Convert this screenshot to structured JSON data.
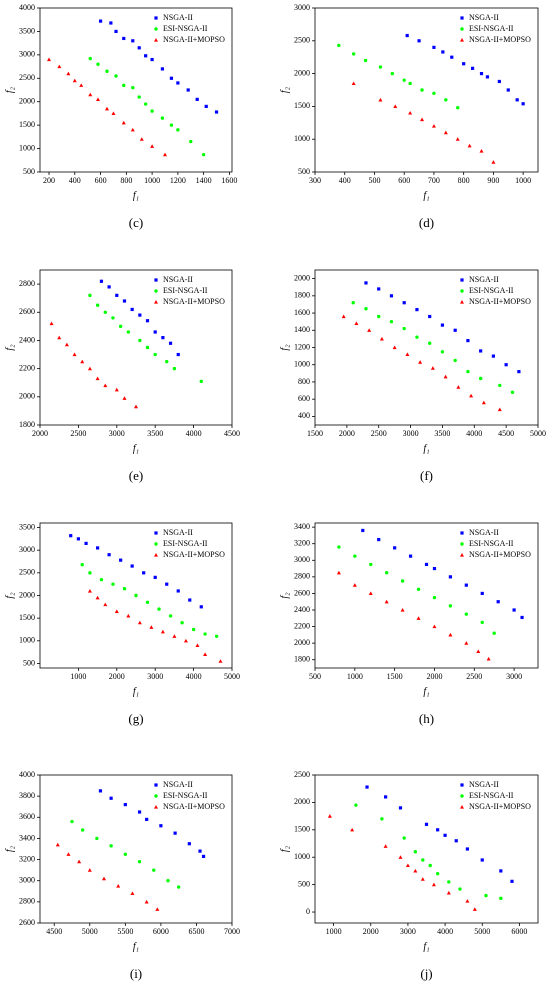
{
  "chart_data": [
    {
      "type": "scatter",
      "label": "(c)",
      "xlabel": "f₁",
      "ylabel": "f₂",
      "xlim": [
        130,
        1620
      ],
      "xticks": [
        200,
        400,
        600,
        800,
        1000,
        1200,
        1400,
        1600
      ],
      "ylim": [
        500,
        4000
      ],
      "yticks": [
        500,
        1000,
        1500,
        2000,
        2500,
        3000,
        3500,
        4000
      ],
      "series": [
        {
          "name": "NSGA-II",
          "color": "#0000ff",
          "marker": "square",
          "x": [
            600,
            680,
            720,
            780,
            850,
            900,
            950,
            1000,
            1080,
            1150,
            1200,
            1280,
            1350,
            1420,
            1500
          ],
          "values": [
            3720,
            3680,
            3500,
            3350,
            3300,
            3150,
            2980,
            2900,
            2700,
            2500,
            2400,
            2250,
            2050,
            1900,
            1780
          ]
        },
        {
          "name": "ESI-NSGA-II",
          "color": "#00ff00",
          "marker": "circle",
          "x": [
            520,
            580,
            650,
            720,
            780,
            850,
            900,
            950,
            1000,
            1080,
            1150,
            1200,
            1300,
            1400
          ],
          "values": [
            2920,
            2800,
            2650,
            2550,
            2350,
            2300,
            2100,
            1950,
            1800,
            1650,
            1500,
            1400,
            1150,
            870
          ]
        },
        {
          "name": "NSGA-II+MOPSO",
          "color": "#ff0000",
          "marker": "triangle",
          "x": [
            200,
            280,
            350,
            400,
            450,
            520,
            580,
            650,
            700,
            780,
            850,
            920,
            1000,
            1100
          ],
          "values": [
            2900,
            2750,
            2600,
            2450,
            2350,
            2150,
            2050,
            1850,
            1750,
            1550,
            1400,
            1200,
            1050,
            870
          ]
        }
      ]
    },
    {
      "type": "scatter",
      "label": "(d)",
      "xlabel": "f₁",
      "ylabel": "f₂",
      "xlim": [
        300,
        1050
      ],
      "xticks": [
        300,
        400,
        500,
        600,
        700,
        800,
        900,
        1000
      ],
      "ylim": [
        500,
        3000
      ],
      "yticks": [
        500,
        1000,
        1500,
        2000,
        2500,
        3000
      ],
      "series": [
        {
          "name": "NSGA-II",
          "color": "#0000ff",
          "marker": "square",
          "x": [
            610,
            650,
            700,
            730,
            760,
            800,
            830,
            860,
            880,
            920,
            950,
            980,
            1000
          ],
          "values": [
            2580,
            2500,
            2400,
            2330,
            2250,
            2150,
            2080,
            2000,
            1950,
            1880,
            1750,
            1600,
            1540
          ]
        },
        {
          "name": "ESI-NSGA-II",
          "color": "#00ff00",
          "marker": "circle",
          "x": [
            380,
            430,
            470,
            520,
            560,
            600,
            620,
            660,
            700,
            740,
            780
          ],
          "values": [
            2430,
            2300,
            2200,
            2100,
            2000,
            1900,
            1850,
            1750,
            1700,
            1600,
            1480
          ]
        },
        {
          "name": "NSGA-II+MOPSO",
          "color": "#ff0000",
          "marker": "triangle",
          "x": [
            430,
            520,
            570,
            620,
            660,
            700,
            740,
            780,
            820,
            860,
            900
          ],
          "values": [
            1850,
            1600,
            1500,
            1400,
            1300,
            1200,
            1100,
            1000,
            900,
            820,
            650
          ]
        }
      ]
    },
    {
      "type": "scatter",
      "label": "(e)",
      "xlabel": "f₁",
      "ylabel": "f₂",
      "xlim": [
        2000,
        4500
      ],
      "xticks": [
        2000,
        2500,
        3000,
        3500,
        4000,
        4500
      ],
      "ylim": [
        1800,
        2900
      ],
      "yticks": [
        1800,
        2000,
        2200,
        2400,
        2600,
        2800
      ],
      "series": [
        {
          "name": "NSGA-II",
          "color": "#0000ff",
          "marker": "square",
          "x": [
            2800,
            2900,
            3000,
            3100,
            3200,
            3300,
            3400,
            3500,
            3600,
            3700,
            3800
          ],
          "values": [
            2820,
            2780,
            2720,
            2680,
            2620,
            2580,
            2540,
            2460,
            2420,
            2380,
            2300
          ]
        },
        {
          "name": "ESI-NSGA-II",
          "color": "#00ff00",
          "marker": "circle",
          "x": [
            2650,
            2750,
            2850,
            2950,
            3050,
            3150,
            3300,
            3400,
            3500,
            3650,
            3750,
            4100
          ],
          "values": [
            2720,
            2650,
            2600,
            2560,
            2500,
            2460,
            2400,
            2350,
            2300,
            2250,
            2200,
            2110
          ]
        },
        {
          "name": "NSGA-II+MOPSO",
          "color": "#ff0000",
          "marker": "triangle",
          "x": [
            2150,
            2250,
            2350,
            2450,
            2550,
            2650,
            2750,
            2850,
            3000,
            3100,
            3250
          ],
          "values": [
            2520,
            2420,
            2370,
            2300,
            2250,
            2200,
            2130,
            2080,
            2050,
            1990,
            1930
          ]
        }
      ]
    },
    {
      "type": "scatter",
      "label": "(f)",
      "xlabel": "f₁",
      "ylabel": "f₂",
      "xlim": [
        1500,
        5000
      ],
      "xticks": [
        1500,
        2000,
        2500,
        3000,
        3500,
        4000,
        4500,
        5000
      ],
      "ylim": [
        300,
        2100
      ],
      "yticks": [
        400,
        600,
        800,
        1000,
        1200,
        1400,
        1600,
        1800,
        2000
      ],
      "series": [
        {
          "name": "NSGA-II",
          "color": "#0000ff",
          "marker": "square",
          "x": [
            2300,
            2500,
            2700,
            2900,
            3100,
            3300,
            3500,
            3700,
            3900,
            4100,
            4300,
            4500,
            4700
          ],
          "values": [
            1950,
            1880,
            1800,
            1720,
            1640,
            1560,
            1460,
            1400,
            1280,
            1160,
            1100,
            1000,
            920
          ]
        },
        {
          "name": "ESI-NSGA-II",
          "color": "#00ff00",
          "marker": "circle",
          "x": [
            2100,
            2300,
            2500,
            2700,
            2900,
            3100,
            3300,
            3500,
            3700,
            3900,
            4100,
            4400,
            4600
          ],
          "values": [
            1720,
            1650,
            1560,
            1500,
            1420,
            1320,
            1250,
            1150,
            1050,
            920,
            840,
            760,
            680
          ]
        },
        {
          "name": "NSGA-II+MOPSO",
          "color": "#ff0000",
          "marker": "triangle",
          "x": [
            1950,
            2150,
            2350,
            2550,
            2750,
            2950,
            3150,
            3350,
            3550,
            3750,
            3950,
            4150,
            4400
          ],
          "values": [
            1560,
            1480,
            1400,
            1300,
            1200,
            1120,
            1030,
            960,
            860,
            740,
            640,
            560,
            480
          ]
        }
      ]
    },
    {
      "type": "scatter",
      "label": "(g)",
      "xlabel": "f₁",
      "ylabel": "f₂",
      "xlim": [
        0,
        5000
      ],
      "xticks": [
        1000,
        2000,
        3000,
        4000,
        5000
      ],
      "ylim": [
        400,
        3600
      ],
      "yticks": [
        500,
        1000,
        1500,
        2000,
        2500,
        3000,
        3500
      ],
      "series": [
        {
          "name": "NSGA-II",
          "color": "#0000ff",
          "marker": "square",
          "x": [
            800,
            1000,
            1200,
            1500,
            1800,
            2100,
            2400,
            2700,
            3000,
            3300,
            3600,
            3900,
            4200
          ],
          "values": [
            3320,
            3250,
            3150,
            3050,
            2900,
            2780,
            2650,
            2500,
            2400,
            2250,
            2100,
            1900,
            1750
          ]
        },
        {
          "name": "ESI-NSGA-II",
          "color": "#00ff00",
          "marker": "circle",
          "x": [
            1100,
            1300,
            1600,
            1900,
            2200,
            2500,
            2800,
            3100,
            3400,
            3700,
            4000,
            4300,
            4600
          ],
          "values": [
            2680,
            2500,
            2350,
            2250,
            2150,
            2000,
            1850,
            1700,
            1550,
            1400,
            1250,
            1150,
            1100
          ]
        },
        {
          "name": "NSGA-II+MOPSO",
          "color": "#ff0000",
          "marker": "triangle",
          "x": [
            1300,
            1500,
            1700,
            2000,
            2300,
            2600,
            2900,
            3200,
            3500,
            3800,
            4100,
            4300,
            4700
          ],
          "values": [
            2100,
            1950,
            1800,
            1650,
            1550,
            1400,
            1300,
            1200,
            1100,
            1000,
            900,
            700,
            550
          ]
        }
      ]
    },
    {
      "type": "scatter",
      "label": "(h)",
      "xlabel": "f₁",
      "ylabel": "f₂",
      "xlim": [
        500,
        3300
      ],
      "xticks": [
        500,
        1000,
        1500,
        2000,
        2500,
        3000
      ],
      "ylim": [
        1700,
        3450
      ],
      "yticks": [
        1800,
        2000,
        2200,
        2400,
        2600,
        2800,
        3000,
        3200,
        3400
      ],
      "series": [
        {
          "name": "NSGA-II",
          "color": "#0000ff",
          "marker": "square",
          "x": [
            1100,
            1300,
            1500,
            1700,
            1900,
            2000,
            2200,
            2400,
            2600,
            2800,
            3000,
            3100
          ],
          "values": [
            3360,
            3250,
            3150,
            3050,
            2950,
            2900,
            2800,
            2700,
            2600,
            2500,
            2400,
            2310
          ]
        },
        {
          "name": "ESI-NSGA-II",
          "color": "#00ff00",
          "marker": "circle",
          "x": [
            800,
            1000,
            1200,
            1400,
            1600,
            1800,
            2000,
            2200,
            2400,
            2600,
            2750
          ],
          "values": [
            3160,
            3050,
            2950,
            2850,
            2750,
            2650,
            2550,
            2450,
            2350,
            2250,
            2120
          ]
        },
        {
          "name": "NSGA-II+MOPSO",
          "color": "#ff0000",
          "marker": "triangle",
          "x": [
            800,
            1000,
            1200,
            1400,
            1600,
            1800,
            2000,
            2200,
            2400,
            2550,
            2680
          ],
          "values": [
            2850,
            2700,
            2600,
            2500,
            2400,
            2300,
            2200,
            2100,
            2000,
            1900,
            1810
          ]
        }
      ]
    },
    {
      "type": "scatter",
      "label": "(i)",
      "xlabel": "f₁",
      "ylabel": "f₂",
      "xlim": [
        4300,
        7000
      ],
      "xticks": [
        4500,
        5000,
        5500,
        6000,
        6500,
        7000
      ],
      "ylim": [
        2600,
        4000
      ],
      "yticks": [
        2600,
        2800,
        3000,
        3200,
        3400,
        3600,
        3800,
        4000
      ],
      "series": [
        {
          "name": "NSGA-II",
          "color": "#0000ff",
          "marker": "square",
          "x": [
            5150,
            5300,
            5500,
            5700,
            5800,
            6000,
            6200,
            6400,
            6550,
            6600
          ],
          "values": [
            3850,
            3780,
            3720,
            3650,
            3580,
            3520,
            3450,
            3350,
            3280,
            3230
          ]
        },
        {
          "name": "ESI-NSGA-II",
          "color": "#00ff00",
          "marker": "circle",
          "x": [
            4750,
            4900,
            5100,
            5300,
            5500,
            5700,
            5900,
            6100,
            6250
          ],
          "values": [
            3560,
            3480,
            3400,
            3330,
            3250,
            3180,
            3100,
            3000,
            2940
          ]
        },
        {
          "name": "NSGA-II+MOPSO",
          "color": "#ff0000",
          "marker": "triangle",
          "x": [
            4550,
            4700,
            4850,
            5000,
            5200,
            5400,
            5600,
            5800,
            5950
          ],
          "values": [
            3340,
            3250,
            3180,
            3100,
            3020,
            2950,
            2880,
            2800,
            2730
          ]
        }
      ]
    },
    {
      "type": "scatter",
      "label": "(j)",
      "xlabel": "f₁",
      "ylabel": "f₂",
      "xlim": [
        500,
        6500
      ],
      "xticks": [
        1000,
        2000,
        3000,
        4000,
        5000,
        6000
      ],
      "ylim": [
        -200,
        2500
      ],
      "yticks": [
        0,
        500,
        1000,
        1500,
        2000,
        2500
      ],
      "series": [
        {
          "name": "NSGA-II",
          "color": "#0000ff",
          "marker": "square",
          "x": [
            1900,
            2400,
            2800,
            3500,
            3800,
            4000,
            4300,
            4600,
            5000,
            5500,
            5800
          ],
          "values": [
            2280,
            2100,
            1900,
            1600,
            1500,
            1400,
            1300,
            1150,
            950,
            750,
            560
          ]
        },
        {
          "name": "ESI-NSGA-II",
          "color": "#00ff00",
          "marker": "circle",
          "x": [
            1600,
            2300,
            2900,
            3200,
            3400,
            3600,
            3800,
            4100,
            4400,
            5100,
            5500
          ],
          "values": [
            1950,
            1700,
            1350,
            1100,
            950,
            850,
            700,
            550,
            420,
            300,
            250
          ]
        },
        {
          "name": "NSGA-II+MOPSO",
          "color": "#ff0000",
          "marker": "triangle",
          "x": [
            900,
            1500,
            2400,
            2800,
            3000,
            3200,
            3400,
            3700,
            4100,
            4600,
            4800
          ],
          "values": [
            1750,
            1500,
            1200,
            1000,
            850,
            750,
            600,
            500,
            350,
            200,
            50
          ]
        }
      ]
    }
  ]
}
